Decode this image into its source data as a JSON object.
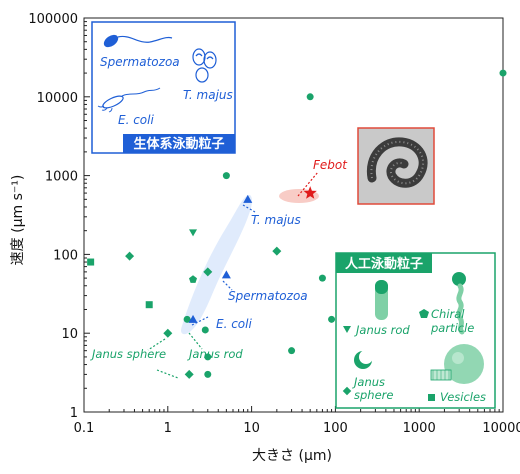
{
  "chart_data": {
    "type": "scatter",
    "xscale": "log",
    "yscale": "log",
    "xlabel": "大きさ (µm)",
    "ylabel": "速度 (µm s⁻¹)",
    "xlim": [
      0.1,
      10000
    ],
    "ylim": [
      1,
      100000
    ],
    "xticks": [
      "0.1",
      "1",
      "10",
      "100",
      "1000",
      "10000"
    ],
    "yticks": [
      "1",
      "10",
      "100",
      "1000",
      "10000",
      "100000"
    ],
    "grid": false,
    "colors": {
      "biological": "#1f5fd6",
      "artificial": "#1aa36a",
      "febot": "#e01b1b"
    },
    "biological_points": [
      {
        "label": "T. majus",
        "x": 9,
        "y": 500
      },
      {
        "label": "Spermatozoa",
        "x": 5,
        "y": 55
      },
      {
        "label": "E. coli",
        "x": 2,
        "y": 15
      }
    ],
    "febot_point": {
      "label": "Febot",
      "x": 50,
      "y": 600
    },
    "artificial_series": [
      {
        "marker": "circle",
        "points": [
          [
            3,
            5
          ],
          [
            2.8,
            11
          ],
          [
            1.7,
            15
          ],
          [
            5,
            1000
          ],
          [
            50,
            10000
          ],
          [
            10000,
            20000
          ],
          [
            70,
            50
          ],
          [
            30,
            6
          ],
          [
            90,
            15
          ],
          [
            3,
            3
          ]
        ]
      },
      {
        "marker": "diamond",
        "points": [
          [
            0.35,
            95
          ],
          [
            1,
            10
          ],
          [
            3,
            60
          ],
          [
            20,
            110
          ],
          [
            1.8,
            3
          ]
        ]
      },
      {
        "marker": "square",
        "points": [
          [
            0.12,
            80
          ],
          [
            0.6,
            23
          ]
        ]
      },
      {
        "marker": "triangle-down",
        "points": [
          [
            2,
            190
          ]
        ]
      },
      {
        "marker": "pentagon",
        "points": [
          [
            2,
            48
          ]
        ]
      }
    ],
    "annotations": {
      "t_majus": "T. majus",
      "spermatozoa": "Spermatozoa",
      "e_coli": "E. coli",
      "febot": "Febot",
      "janus_sphere": "Janus sphere",
      "janus_rod": "Janus rod"
    },
    "legends": {
      "biological": {
        "title": "生体系泳動粒子",
        "items": {
          "spermatozoa": "Spermatozoa",
          "t_majus": "T. majus",
          "e_coli": "E. coli"
        }
      },
      "artificial": {
        "title": "人工泳動粒子",
        "items": {
          "janus_rod": "Janus rod",
          "chiral_particle": "Chiral particle",
          "chiral_line1": "Chiral",
          "chiral_line2": "particle",
          "janus_sphere": "Janus sphere",
          "janus_line1": "Janus",
          "janus_line2": "sphere",
          "vesicles": "Vesicles"
        }
      }
    }
  }
}
